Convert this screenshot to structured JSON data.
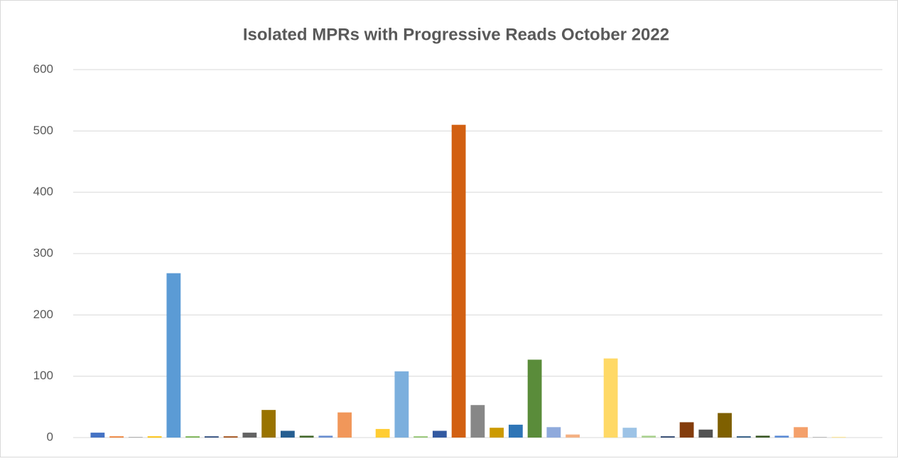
{
  "chart_data": {
    "type": "bar",
    "title": "Isolated MPRs with Progressive Reads October 2022",
    "categories": [
      null,
      null,
      null,
      null,
      null,
      null,
      null,
      null,
      null,
      null,
      null,
      null,
      null,
      null,
      null,
      null,
      null,
      null,
      null,
      null,
      null,
      null,
      null,
      null,
      null,
      null,
      null,
      null,
      null,
      null,
      null,
      null,
      null,
      null,
      null,
      null,
      null,
      null,
      null,
      null
    ],
    "values": [
      8,
      2,
      1,
      2,
      268,
      2,
      2,
      2,
      8,
      45,
      11,
      3,
      3,
      41,
      0,
      14,
      108,
      2,
      11,
      510,
      53,
      16,
      21,
      127,
      17,
      5,
      0,
      129,
      16,
      3,
      2,
      25,
      13,
      40,
      2,
      3,
      3,
      17,
      1,
      1
    ],
    "colors": [
      "#4472c4",
      "#ed7d31",
      "#a5a5a5",
      "#ffc000",
      "#5b9bd5",
      "#70ad47",
      "#264478",
      "#9e480e",
      "#636363",
      "#997300",
      "#255e91",
      "#43682b",
      "#698ed0",
      "#f1975a",
      "#b7b7b7",
      "#ffcd33",
      "#7cafdd",
      "#8cc168",
      "#335aa1",
      "#d26012",
      "#878787",
      "#cc9a00",
      "#2e75b6",
      "#5a8c3a",
      "#8faadc",
      "#f4b183",
      "#c9c9c9",
      "#ffd966",
      "#9dc3e6",
      "#a9d18e",
      "#203864",
      "#843c0c",
      "#525252",
      "#7f6000",
      "#1f4e79",
      "#385723",
      "#5b8bd5",
      "#f4a06a",
      "#b0b0b0",
      "#ffe080"
    ],
    "ylim": [
      0,
      600
    ],
    "yticks": [
      0,
      100,
      200,
      300,
      400,
      500,
      600
    ],
    "grid": true
  }
}
